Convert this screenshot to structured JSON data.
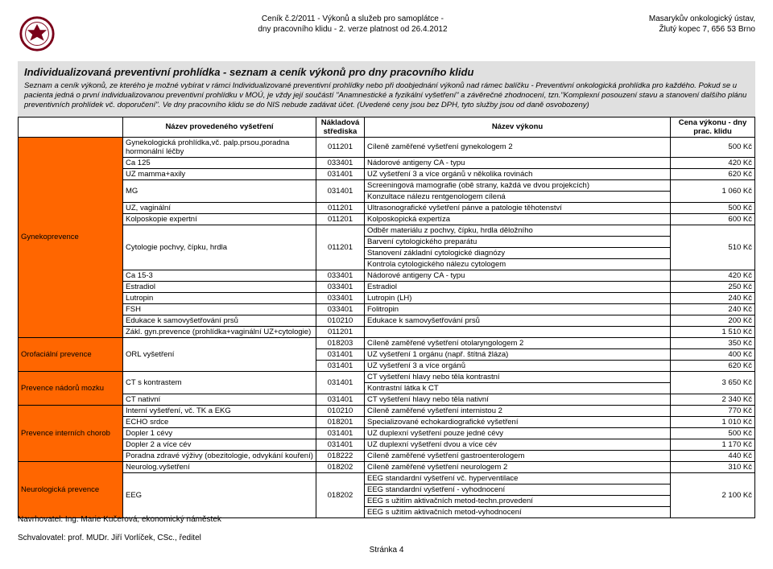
{
  "header": {
    "center_line1": "Ceník č.2/2011 - Výkonů a služeb pro samoplátce -",
    "center_line2": "dny pracovního klidu - 2. verze platnost od 26.4.2012",
    "right_line1": "Masarykův onkologický ústav,",
    "right_line2": "Žlutý kopec 7, 656 53 Brno"
  },
  "title": {
    "main": "Individualizovaná preventivní prohlídka - seznam a ceník výkonů pro dny pracovního klidu",
    "sub": "Seznam a ceník výkonů, ze kterého je možné vybírat v rámci Individualizované preventivní prohlídky nebo při doobjednání výkonů nad rámec balíčku - Preventivní onkologická prohlídka pro každého. Pokud se u pacienta jedná o první individualizovanou preventivní prohlídku v MOÚ, je vždy její součástí \"Anamnestické a fyzikální vyšetření\" a závěrečné zhodnocení, tzn.\"Komplexní posouzení stavu a stanovení dalšího plánu preventivních prohlídek vč. doporučení\". Ve dny pracovního klidu se do NIS nebude zadávat účet. (Uvedené ceny jsou bez DPH, tyto služby jsou od daně osvobozeny)"
  },
  "columns": {
    "exam": "Název provedeného vyšetření",
    "code": "Nákladová střediska",
    "desc": "Název výkonu",
    "price": "Cena výkonu - dny prac. klidu"
  },
  "groups": [
    {
      "category": "Gynekoprevence",
      "rows": [
        {
          "exam": "Gynekologická prohlídka,vč. palp.prsou,poradna hormonální léčby",
          "code": "011201",
          "desc": [
            "Cíleně zaměřené vyšetření gynekologem 2"
          ],
          "price": "500 Kč"
        },
        {
          "exam": "Ca 125",
          "code": "033401",
          "desc": [
            "Nádorové antigeny CA - typu"
          ],
          "price": "420 Kč"
        },
        {
          "exam": "UZ mamma+axily",
          "code": "031401",
          "desc": [
            "UZ vyšetření 3 a více orgánů v několika rovinách"
          ],
          "price": "620 Kč"
        },
        {
          "exam": "MG",
          "code": "031401",
          "desc": [
            "Screeningová mamografie (obě strany, každá ve dvou projekcích)",
            "Konzultace nálezu rentgenologem cílená"
          ],
          "price": "1 060 Kč"
        },
        {
          "exam": "UZ, vaginální",
          "code": "011201",
          "desc": [
            "Ultrasonografické vyšetření pánve a patologie těhotenství"
          ],
          "price": "500 Kč"
        },
        {
          "exam": "Kolposkopie expertní",
          "code": "011201",
          "desc": [
            "Kolposkopická expertíza"
          ],
          "price": "600 Kč"
        },
        {
          "exam": "Cytologie pochvy, čípku, hrdla",
          "code": "011201",
          "desc": [
            "Odběr materiálu z pochvy, čípku, hrdla děložního",
            "Barvení cytologického preparátu",
            "Stanovení základní cytologické diagnózy",
            "Kontrola cytologického nálezu cytologem"
          ],
          "price": "510 Kč"
        },
        {
          "exam": "Ca 15-3",
          "code": "033401",
          "desc": [
            "Nádorové antigeny CA - typu"
          ],
          "price": "420 Kč"
        },
        {
          "exam": "Estradiol",
          "code": "033401",
          "desc": [
            "Estradiol"
          ],
          "price": "250 Kč"
        },
        {
          "exam": "Lutropin",
          "code": "033401",
          "desc": [
            "Lutropin (LH)"
          ],
          "price": "240 Kč"
        },
        {
          "exam": "FSH",
          "code": "033401",
          "desc": [
            "Folitropin"
          ],
          "price": "240 Kč"
        },
        {
          "exam": "Edukace k samovyšetřování prsů",
          "code": "010210",
          "desc": [
            "Edukace k samovyšetřování prsů"
          ],
          "price": "200 Kč"
        },
        {
          "exam": "Zákl. gyn.prevence (prohlídka+vaginální UZ+cytologie)",
          "code": "011201",
          "desc": [
            ""
          ],
          "price": "1 510 Kč"
        }
      ]
    },
    {
      "category": "Orofaciální prevence",
      "rows": [
        {
          "exam": "ORL vyšetření",
          "code_multi": [
            "018203",
            "031401",
            "031401"
          ],
          "desc": [
            "Cíleně zaměřené vyšetření otolaryngologem 2",
            "UZ vyšetření 1 orgánu (např. štítná žláza)",
            "UZ vyšetření  3 a více orgánů"
          ],
          "price_multi": [
            "350 Kč",
            "400 Kč",
            "620 Kč"
          ]
        }
      ]
    },
    {
      "category": "Prevence nádorů mozku",
      "rows": [
        {
          "exam": "CT s kontrastem",
          "code": "031401",
          "desc": [
            "CT vyšetření hlavy nebo těla kontrastní",
            "Kontrastní látka k CT"
          ],
          "price": "3 650 Kč"
        },
        {
          "exam": "CT nativní",
          "code": "031401",
          "desc": [
            "CT vyšetření hlavy nebo těla nativní"
          ],
          "price": "2 340 Kč"
        }
      ]
    },
    {
      "category": "Prevence interních chorob",
      "rows": [
        {
          "exam": "Interní vyšetření, vč. TK a EKG",
          "code": "010210",
          "desc": [
            "Cíleně zaměřené vyšetření internistou 2"
          ],
          "price": "770 Kč"
        },
        {
          "exam": "ECHO srdce",
          "code": "018201",
          "desc": [
            "Specializované echokardiografické vyšetření"
          ],
          "price": "1 010 Kč"
        },
        {
          "exam": "Dopler 1 cévy",
          "code": "031401",
          "desc": [
            "UZ duplexní vyšetření pouze jedné cévy"
          ],
          "price": "500 Kč"
        },
        {
          "exam": "Dopler 2 a více cév",
          "code": "031401",
          "desc": [
            "UZ duplexní vyšetření dvou a více cév"
          ],
          "price": "1 170 Kč"
        },
        {
          "exam": "Poradna zdravé výživy (obezitologie, odvykání kouření)",
          "code": "018222",
          "desc": [
            "Cíleně zaměřené vyšetření gastroenterologem"
          ],
          "price": "440 Kč"
        }
      ]
    },
    {
      "category": "Neurologická prevence",
      "rows": [
        {
          "exam": "Neurolog.vyšetření",
          "code": "018202",
          "desc": [
            "Cíleně zaměřené vyšetření neurologem 2"
          ],
          "price": "310 Kč"
        },
        {
          "exam": "EEG",
          "code": "018202",
          "desc": [
            "EEG standardní vyšetření vč. hyperventilace",
            "EEG standardní vyšetření - vyhodnocení",
            "EEG s užitím aktivačních metod-techn.provedení",
            "EEG s užitím aktivačních metod-vyhodnocení"
          ],
          "price": "2 100 Kč"
        }
      ]
    }
  ],
  "footer": {
    "proposer": "Navrhovatel: Ing. Marie Kučerová, ekonomický náměstek",
    "approver": "Schvalovatel: prof. MUDr. Jiří Vorlíček, CSc., ředitel",
    "page": "Stránka 4"
  },
  "colors": {
    "category_bg": "#ff6600",
    "band_bg": "#e0e0e0",
    "border": "#000000"
  }
}
